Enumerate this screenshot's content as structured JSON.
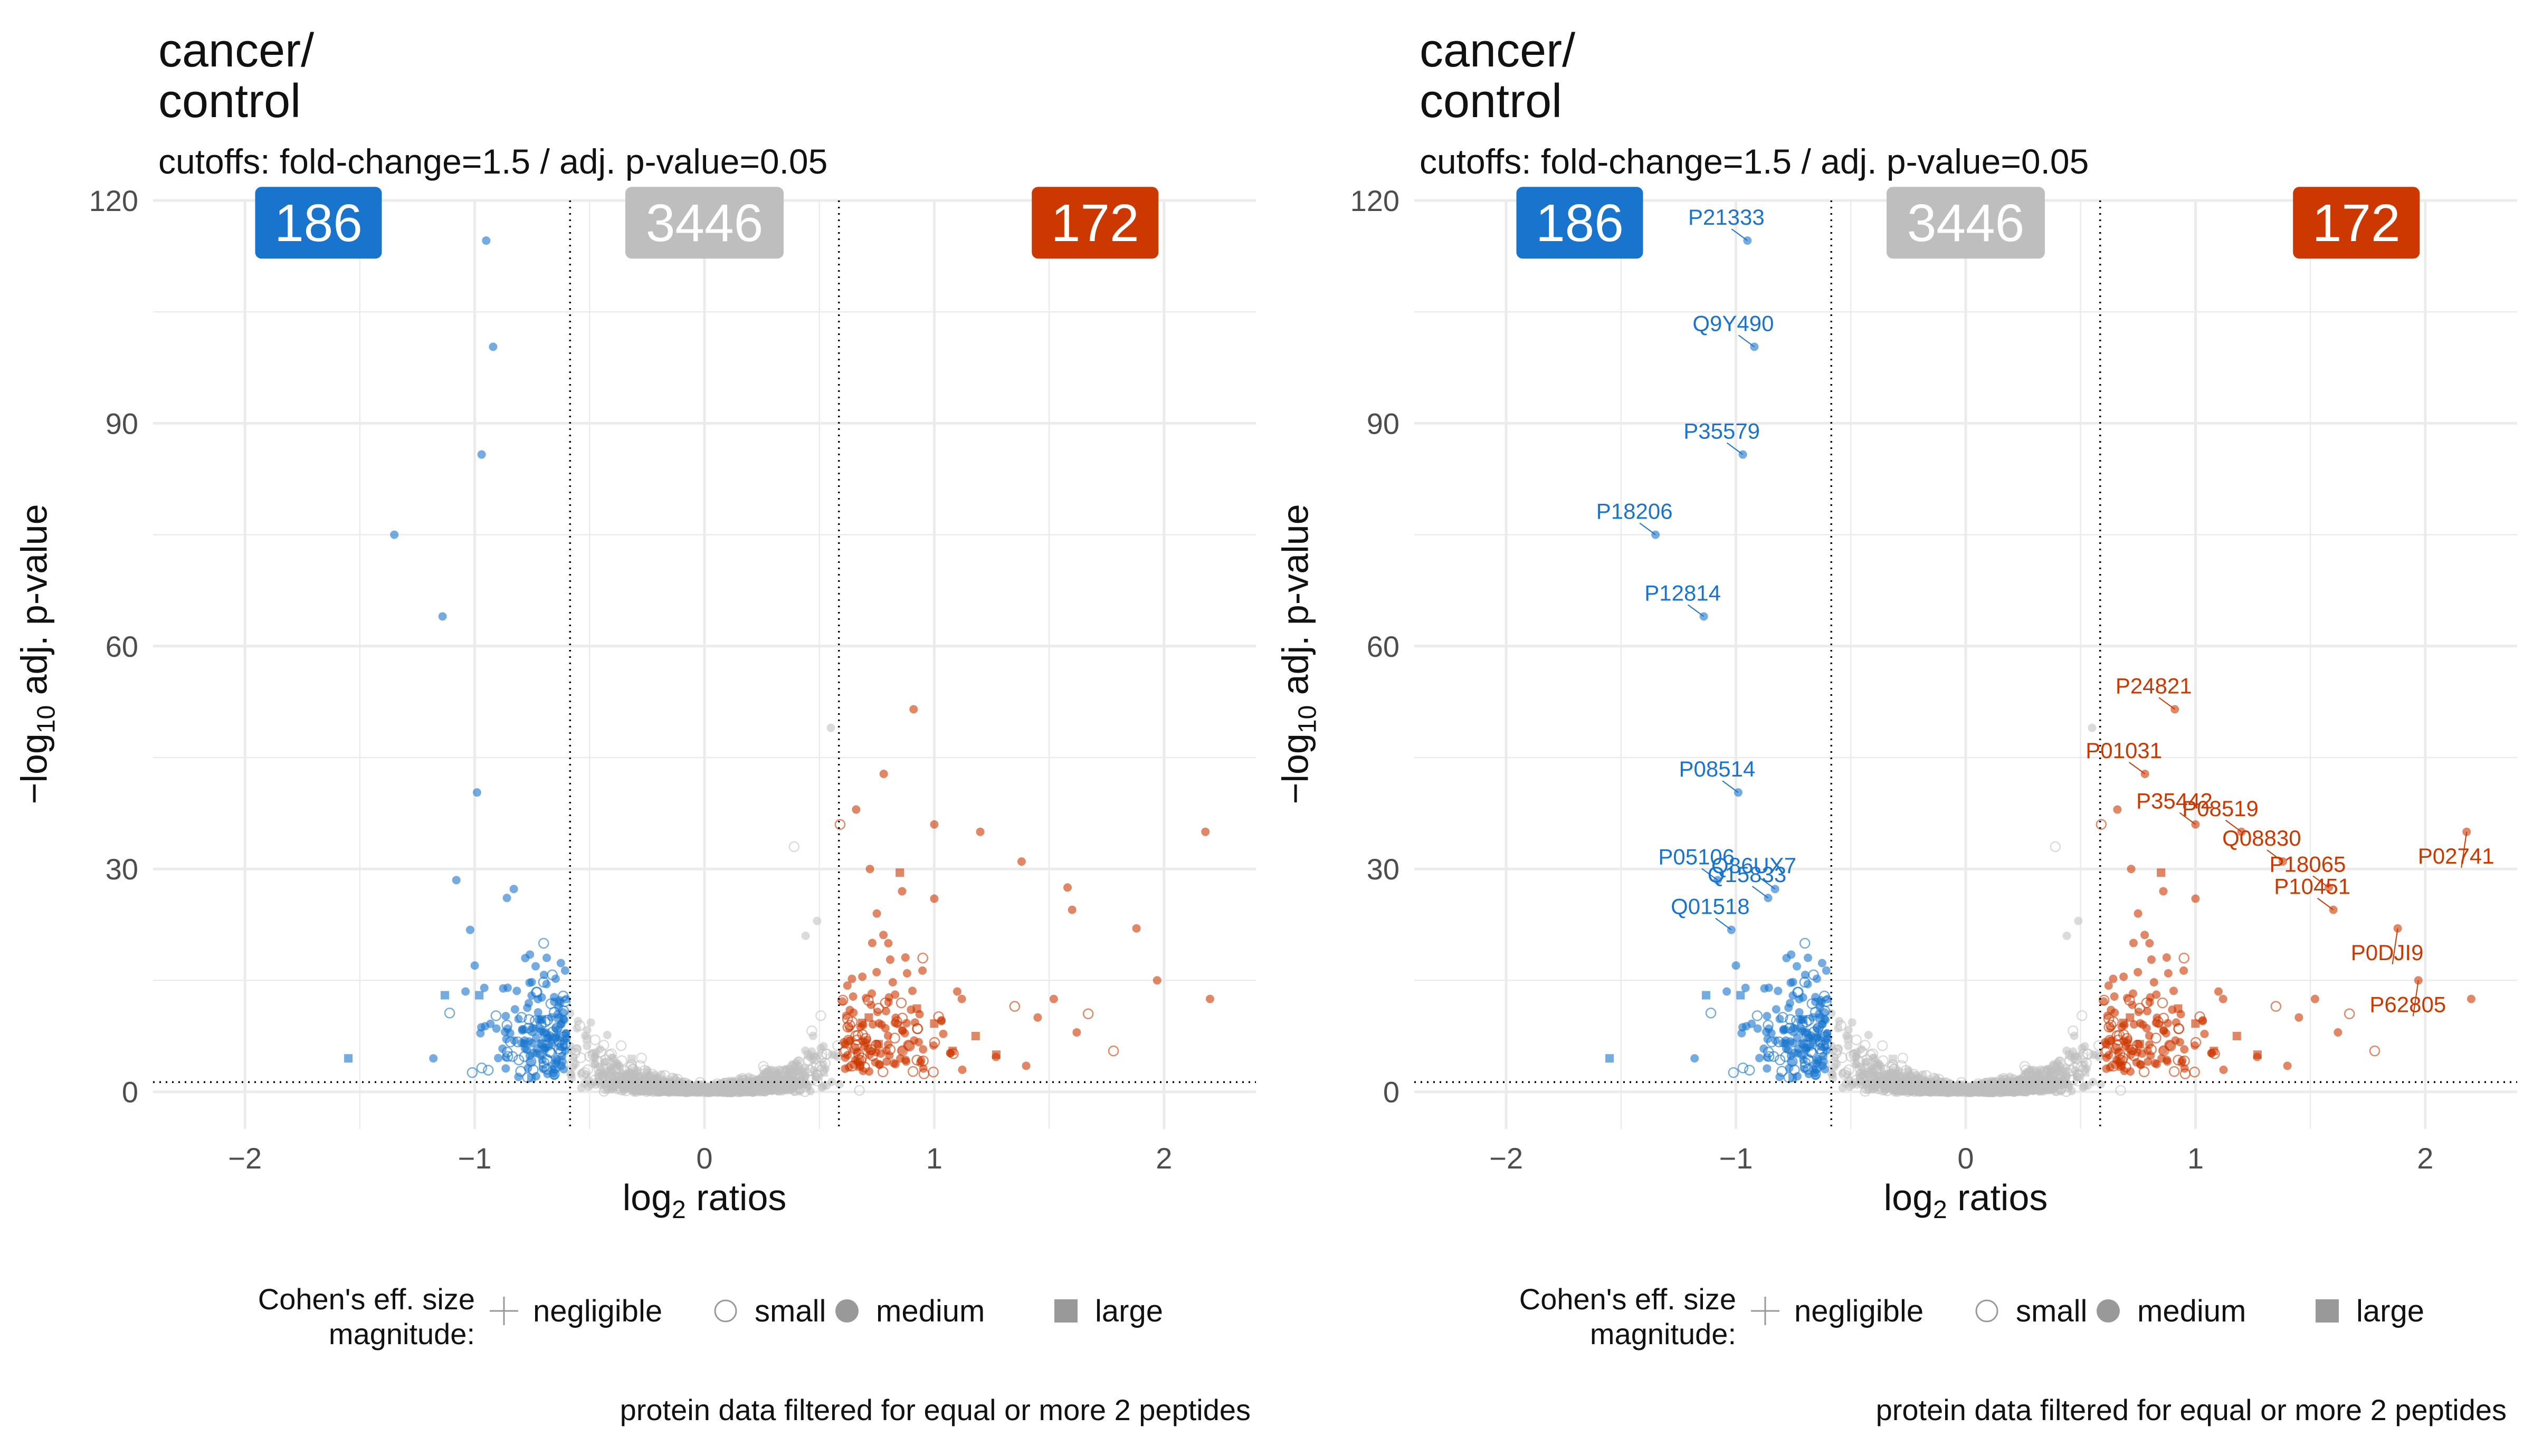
{
  "panels": [
    {
      "title_line1": "cancer/",
      "title_line2": "control",
      "subtitle": "cutoffs: fold-change=1.5 / adj. p-value=0.05",
      "ylabel_main": "−log",
      "ylabel_sub": "10",
      "ylabel_rest": " adj. p-value",
      "xlabel_main": "log",
      "xlabel_sub": "2",
      "xlabel_rest": " ratios",
      "legend_title_1": "Cohen's eff. size",
      "legend_title_2": "magnitude:",
      "legend_items": [
        "negligible",
        "small",
        "medium",
        "large"
      ],
      "caption": "protein data filtered for equal or more 2 peptides",
      "show_labels": false
    },
    {
      "title_line1": "cancer/",
      "title_line2": "control",
      "subtitle": "cutoffs: fold-change=1.5 / adj. p-value=0.05",
      "ylabel_main": "−log",
      "ylabel_sub": "10",
      "ylabel_rest": " adj. p-value",
      "xlabel_main": "log",
      "xlabel_sub": "2",
      "xlabel_rest": " ratios",
      "legend_title_1": "Cohen's eff. size",
      "legend_title_2": "magnitude:",
      "legend_items": [
        "negligible",
        "small",
        "medium",
        "large"
      ],
      "caption": "protein data filtered for equal or more 2 peptides",
      "show_labels": true
    }
  ],
  "colors": {
    "down": "#1874CD",
    "up": "#CD3700",
    "ns": "#BEBEBE",
    "grid": "#EBEBEB",
    "text": "#111111",
    "axis_text": "#4D4D4D"
  },
  "chart_data": {
    "type": "scatter",
    "xlim": [
      -2.4,
      2.4
    ],
    "ylim": [
      -5,
      120
    ],
    "x_ticks": [
      -2,
      -1,
      0,
      1,
      2
    ],
    "y_ticks": [
      0,
      30,
      60,
      90,
      120
    ],
    "x_cutoffs": [
      -0.585,
      0.585
    ],
    "y_cutoff": 1.3,
    "counts": {
      "down": "186",
      "ns": "3446",
      "up": "172"
    },
    "labeled_points": [
      {
        "id": "P21333",
        "x": -0.95,
        "y": 114.6,
        "group": "down"
      },
      {
        "id": "Q9Y490",
        "x": -0.92,
        "y": 100.3,
        "group": "down"
      },
      {
        "id": "P35579",
        "x": -0.97,
        "y": 85.8,
        "group": "down"
      },
      {
        "id": "P18206",
        "x": -1.35,
        "y": 75.0,
        "group": "down"
      },
      {
        "id": "P12814",
        "x": -1.14,
        "y": 64.0,
        "group": "down"
      },
      {
        "id": "P08514",
        "x": -0.99,
        "y": 40.3,
        "group": "down"
      },
      {
        "id": "P05106",
        "x": -1.08,
        "y": 28.5,
        "group": "down"
      },
      {
        "id": "Q86UX7",
        "x": -0.83,
        "y": 27.3,
        "group": "down"
      },
      {
        "id": "Q15833",
        "x": -0.86,
        "y": 26.1,
        "group": "down"
      },
      {
        "id": "Q01518",
        "x": -1.02,
        "y": 21.8,
        "group": "down"
      },
      {
        "id": "P24821",
        "x": 0.91,
        "y": 51.5,
        "group": "up"
      },
      {
        "id": "P01031",
        "x": 0.78,
        "y": 42.8,
        "group": "up"
      },
      {
        "id": "P35442",
        "x": 1.0,
        "y": 36.0,
        "group": "up"
      },
      {
        "id": "P08519",
        "x": 1.2,
        "y": 35.0,
        "group": "up"
      },
      {
        "id": "Q08830",
        "x": 1.38,
        "y": 31.0,
        "group": "up"
      },
      {
        "id": "P02741",
        "x": 2.18,
        "y": 35.0,
        "group": "up"
      },
      {
        "id": "P18065",
        "x": 1.58,
        "y": 27.5,
        "group": "up"
      },
      {
        "id": "P10451",
        "x": 1.6,
        "y": 24.5,
        "group": "up"
      },
      {
        "id": "P0DJI9",
        "x": 1.88,
        "y": 22.0,
        "group": "up"
      },
      {
        "id": "P62805",
        "x": 1.97,
        "y": 15.0,
        "group": "up"
      }
    ],
    "extra_points": [
      {
        "x": -1.55,
        "y": 4.5,
        "shape": "large",
        "group": "down"
      },
      {
        "x": -1.18,
        "y": 4.5,
        "shape": "medium",
        "group": "down"
      },
      {
        "x": -1.13,
        "y": 13.0,
        "shape": "large",
        "group": "down"
      },
      {
        "x": -1.04,
        "y": 13.5,
        "shape": "medium",
        "group": "down"
      },
      {
        "x": -1.0,
        "y": 17.0,
        "shape": "medium",
        "group": "down"
      },
      {
        "x": -0.98,
        "y": 13.0,
        "shape": "large",
        "group": "down"
      },
      {
        "x": -0.7,
        "y": 20.0,
        "shape": "small",
        "group": "down"
      },
      {
        "x": -0.78,
        "y": 18.0,
        "shape": "medium",
        "group": "down"
      },
      {
        "x": 0.55,
        "y": 49.0,
        "shape": "medium",
        "group": "ns"
      },
      {
        "x": 0.39,
        "y": 33.0,
        "shape": "small",
        "group": "ns"
      },
      {
        "x": 0.49,
        "y": 23.0,
        "shape": "medium",
        "group": "ns"
      },
      {
        "x": 0.44,
        "y": 21.0,
        "shape": "medium",
        "group": "ns"
      },
      {
        "x": 0.66,
        "y": 38.0,
        "shape": "medium",
        "group": "up"
      },
      {
        "x": 0.59,
        "y": 36.0,
        "shape": "small",
        "group": "up"
      },
      {
        "x": 0.72,
        "y": 30.0,
        "shape": "medium",
        "group": "up"
      },
      {
        "x": 0.85,
        "y": 29.5,
        "shape": "large",
        "group": "up"
      },
      {
        "x": 0.86,
        "y": 27.0,
        "shape": "medium",
        "group": "up"
      },
      {
        "x": 1.1,
        "y": 13.5,
        "shape": "medium",
        "group": "up"
      },
      {
        "x": 1.12,
        "y": 12.5,
        "shape": "medium",
        "group": "up"
      },
      {
        "x": 1.35,
        "y": 11.5,
        "shape": "small",
        "group": "up"
      },
      {
        "x": 1.45,
        "y": 10.0,
        "shape": "medium",
        "group": "up"
      },
      {
        "x": 1.52,
        "y": 12.5,
        "shape": "medium",
        "group": "up"
      },
      {
        "x": 1.67,
        "y": 10.5,
        "shape": "small",
        "group": "up"
      },
      {
        "x": 1.78,
        "y": 5.5,
        "shape": "small",
        "group": "up"
      },
      {
        "x": 1.4,
        "y": 3.5,
        "shape": "medium",
        "group": "up"
      },
      {
        "x": 1.62,
        "y": 8.0,
        "shape": "medium",
        "group": "up"
      },
      {
        "x": 2.2,
        "y": 12.5,
        "shape": "medium",
        "group": "up"
      },
      {
        "x": 1.0,
        "y": 26.0,
        "shape": "medium",
        "group": "up"
      },
      {
        "x": 0.75,
        "y": 24.0,
        "shape": "medium",
        "group": "up"
      },
      {
        "x": 0.8,
        "y": 20.0,
        "shape": "medium",
        "group": "up"
      },
      {
        "x": 0.95,
        "y": 18.0,
        "shape": "small",
        "group": "up"
      },
      {
        "x": 1.18,
        "y": 7.5,
        "shape": "large",
        "group": "up"
      },
      {
        "x": 1.08,
        "y": 5.5,
        "shape": "large",
        "group": "up"
      },
      {
        "x": 1.27,
        "y": 5.0,
        "shape": "large",
        "group": "up"
      }
    ]
  }
}
